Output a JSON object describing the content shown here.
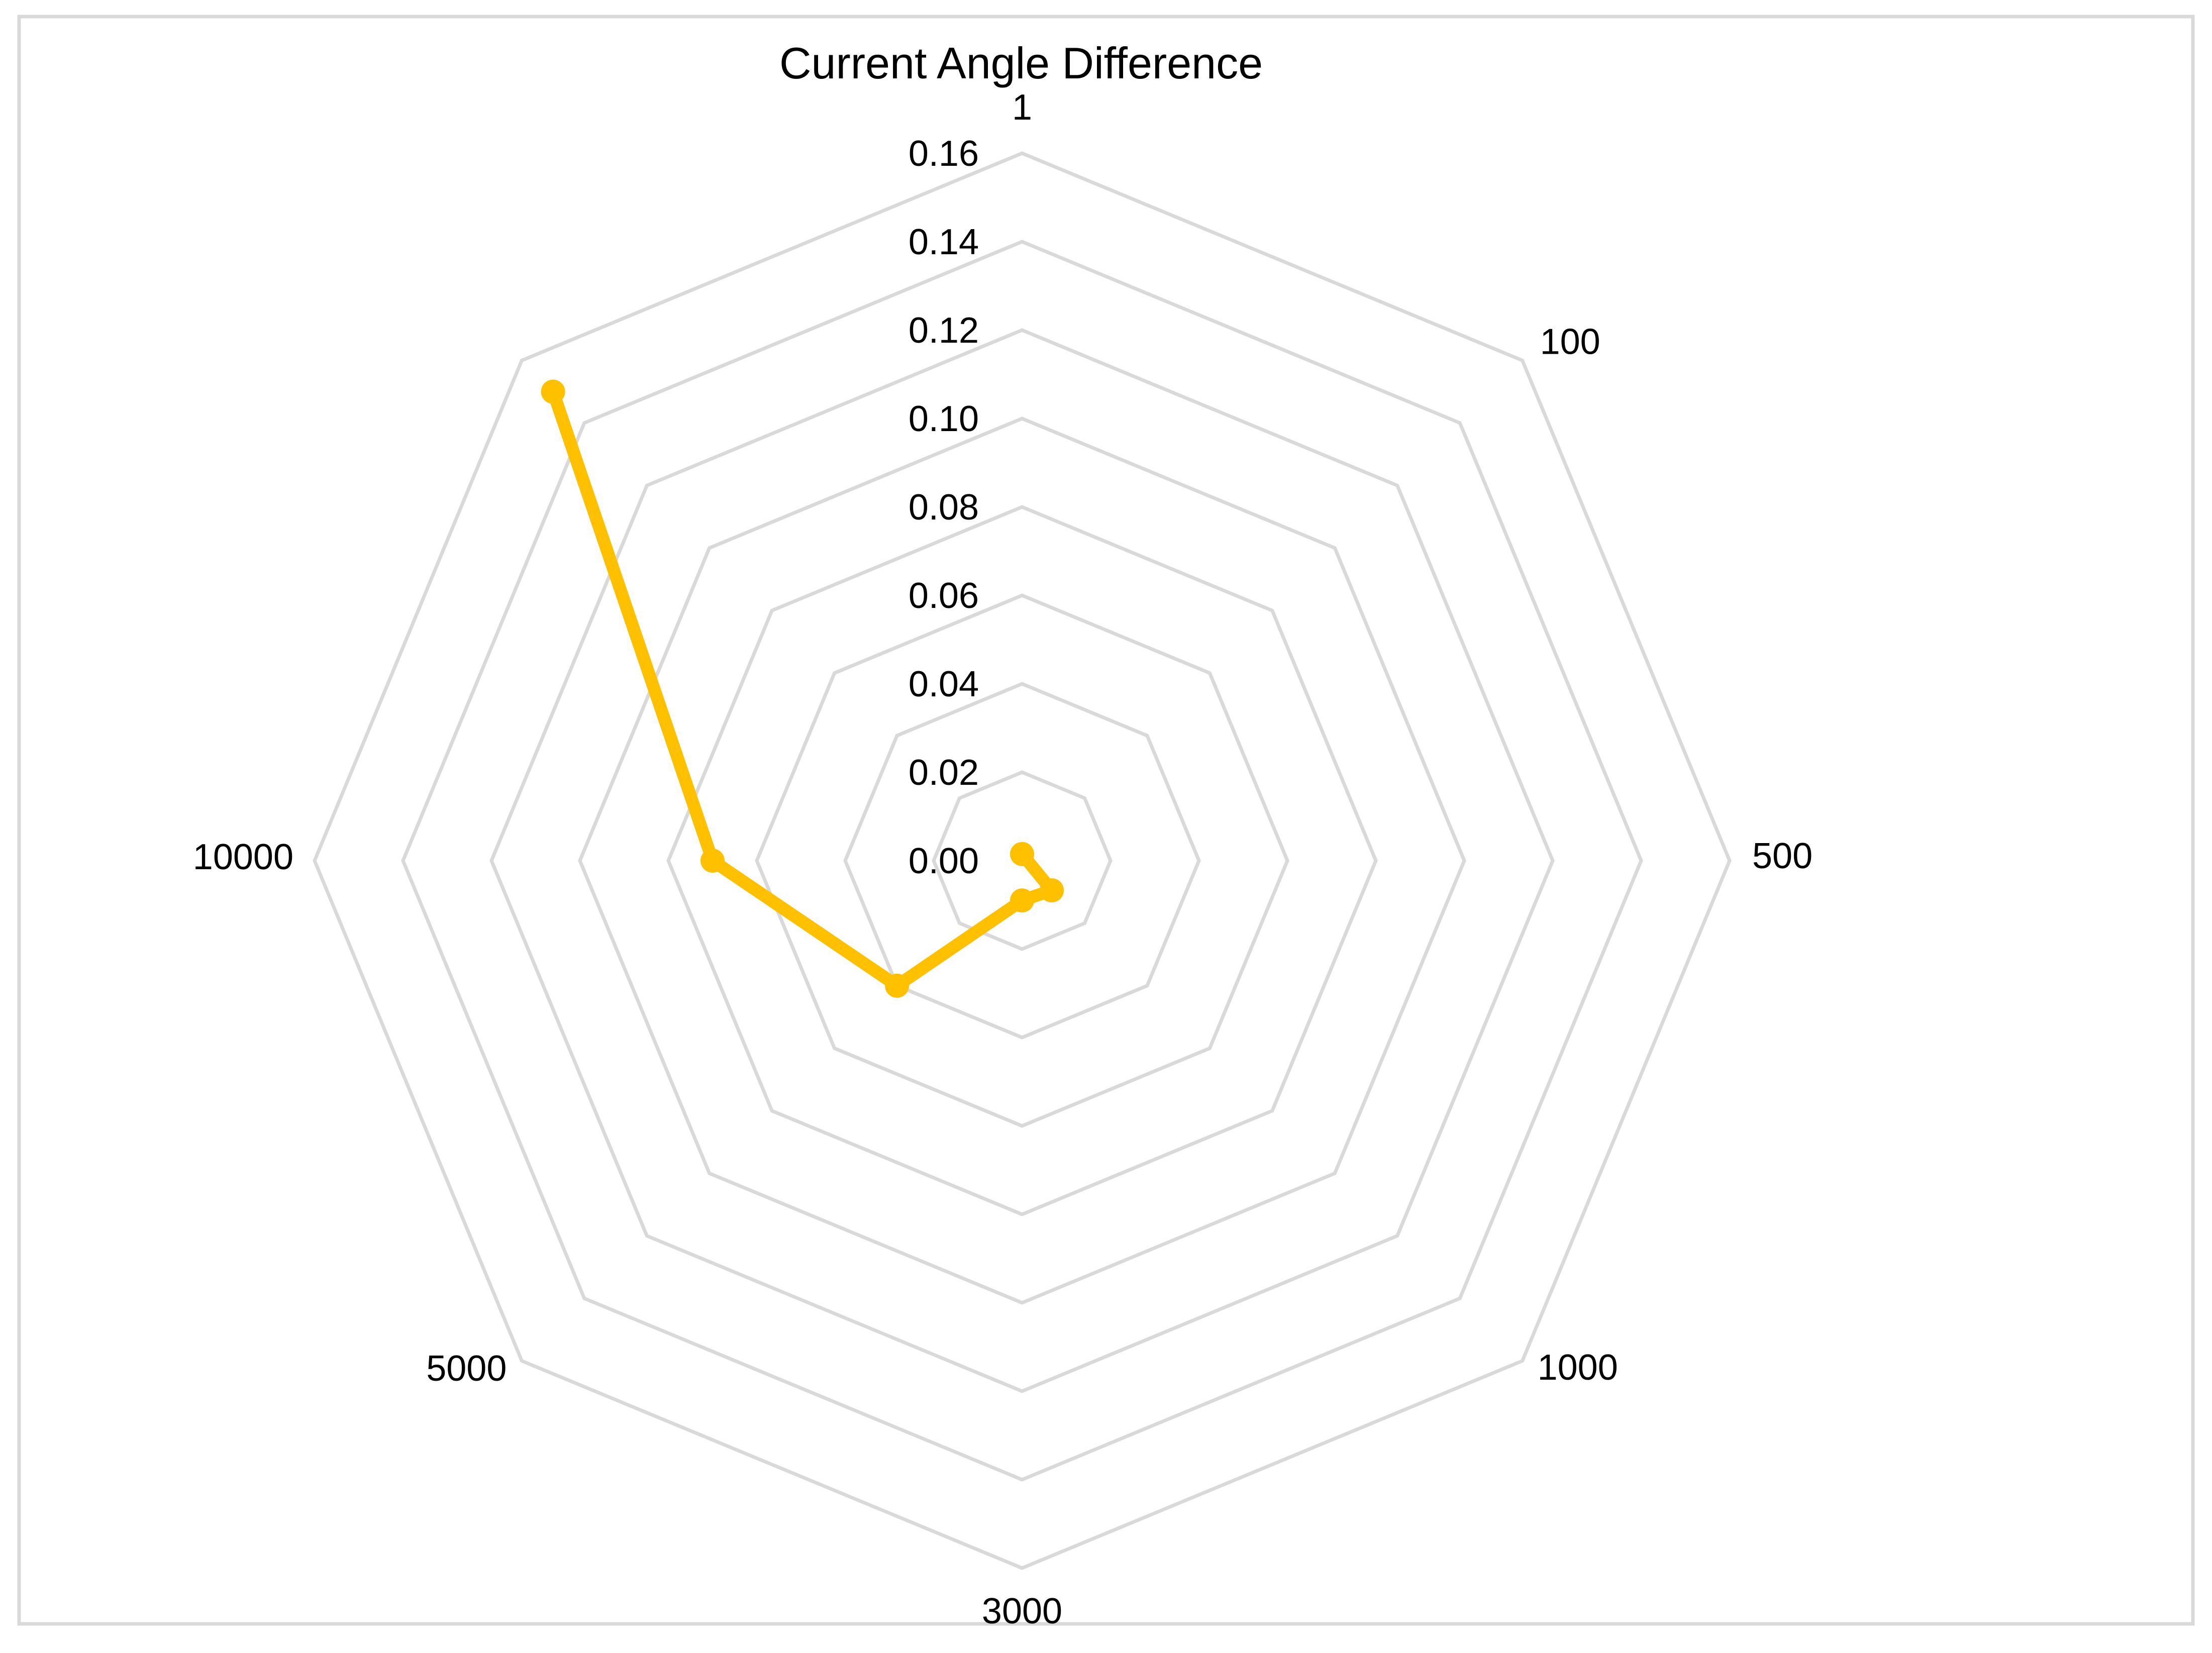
{
  "page": {
    "background_color": "#FFFFFF",
    "frame_border_color": "#D9D9D9",
    "text_color": "#000000"
  },
  "chart_data": {
    "type": "radar",
    "title": "Current Angle Difference",
    "categories": [
      "1",
      "100",
      "500",
      "1000",
      "3000",
      "5000",
      "10000",
      ""
    ],
    "series": [
      {
        "name": "Current Angle Difference",
        "color": "#FFC000",
        "marker": "circle",
        "closed": false,
        "connect_gaps": true,
        "values": [
          0.0015,
          null,
          null,
          0.0095,
          0.009,
          0.04,
          0.07,
          0.15
        ]
      }
    ],
    "axis": {
      "min": 0,
      "max": 0.16,
      "step": 0.02,
      "tick_labels": [
        "0.16",
        "0.14",
        "0.12",
        "0.10",
        "0.08",
        "0.06",
        "0.04",
        "0.02",
        "0.00"
      ]
    },
    "grid": {
      "shape": "polygon",
      "rings": 8,
      "spokes": false,
      "color": "#D9D9D9"
    },
    "legend": "none"
  }
}
